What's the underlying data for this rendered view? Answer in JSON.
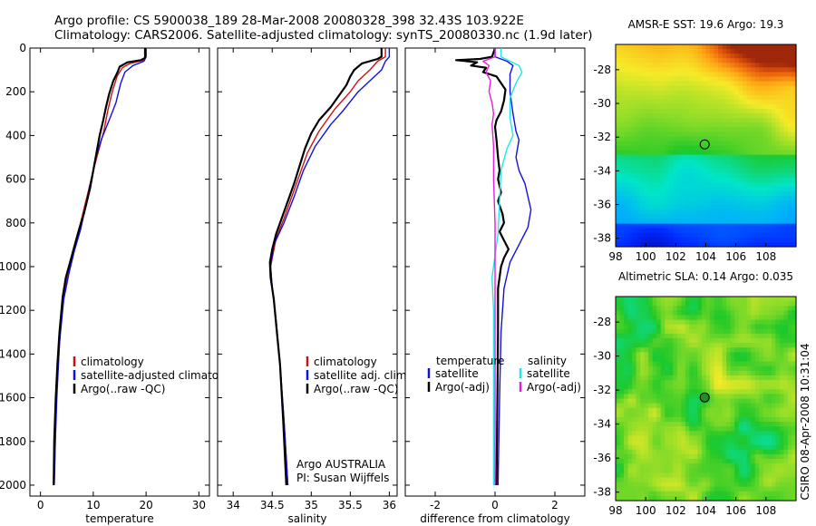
{
  "header": {
    "line1": "Argo profile: CS 5900038_189 28-Mar-2008 20080328_398 32.43S 103.922E",
    "line2": "Climatology: CARS2006. Satellite-adjusted climatology: synTS_20080330.nc (1.9d later)"
  },
  "credit": "CSIRO 08-Apr-2008 10:31:04",
  "colors": {
    "climatology": "#d01010",
    "satellite": "#1010e0",
    "argo": "#000000",
    "satellite_salinity": "#22e6e6",
    "argo_adj_salinity": "#e020e0"
  },
  "chart_data": [
    {
      "type": "line",
      "xlabel": "temperature",
      "ylabel": "",
      "xlim": [
        -2,
        32
      ],
      "ylim": [
        2050,
        0
      ],
      "y_inverted": true,
      "xticks": [
        0,
        10,
        20,
        30
      ],
      "yticks": [
        0,
        200,
        400,
        600,
        800,
        1000,
        1200,
        1400,
        1600,
        1800,
        2000
      ],
      "legend": {
        "placement": "lower-right",
        "entries": [
          "climatology",
          "satellite-adjusted climatology",
          "Argo(..raw -QC)"
        ]
      },
      "series": [
        {
          "name": "climatology",
          "color": "#d01010",
          "points": [
            [
              20,
              0
            ],
            [
              20,
              40
            ],
            [
              19.6,
              55
            ],
            [
              17,
              70
            ],
            [
              15.5,
              90
            ],
            [
              14.5,
              130
            ],
            [
              13.6,
              200
            ],
            [
              12.8,
              280
            ],
            [
              12,
              380
            ],
            [
              11,
              470
            ],
            [
              10,
              560
            ],
            [
              9,
              660
            ],
            [
              8,
              760
            ],
            [
              7,
              860
            ],
            [
              6,
              960
            ],
            [
              5,
              1060
            ],
            [
              4,
              1200
            ],
            [
              3.5,
              1400
            ],
            [
              3,
              1600
            ],
            [
              2.8,
              1800
            ],
            [
              2.6,
              2000
            ]
          ]
        },
        {
          "name": "satellite-adjusted climatology",
          "color": "#1010e0",
          "points": [
            [
              20,
              0
            ],
            [
              20,
              40
            ],
            [
              19.6,
              60
            ],
            [
              17.5,
              80
            ],
            [
              16,
              110
            ],
            [
              15.2,
              160
            ],
            [
              14.3,
              250
            ],
            [
              13,
              330
            ],
            [
              11.5,
              420
            ],
            [
              10.5,
              500
            ],
            [
              9.6,
              600
            ],
            [
              8.6,
              720
            ],
            [
              7.6,
              830
            ],
            [
              6.4,
              930
            ],
            [
              5.4,
              1030
            ],
            [
              4.4,
              1150
            ],
            [
              3.6,
              1350
            ],
            [
              3.1,
              1600
            ],
            [
              2.8,
              1800
            ],
            [
              2.6,
              2000
            ]
          ]
        },
        {
          "name": "Argo(..raw -QC)",
          "color": "#000000",
          "points": [
            [
              19.8,
              0
            ],
            [
              19.8,
              45
            ],
            [
              19,
              55
            ],
            [
              16.5,
              65
            ],
            [
              15,
              85
            ],
            [
              14.6,
              110
            ],
            [
              13.8,
              150
            ],
            [
              13,
              210
            ],
            [
              12.4,
              270
            ],
            [
              11.9,
              330
            ],
            [
              11.2,
              400
            ],
            [
              10.6,
              480
            ],
            [
              10,
              560
            ],
            [
              9.4,
              640
            ],
            [
              8.8,
              700
            ],
            [
              8.2,
              760
            ],
            [
              7.3,
              830
            ],
            [
              6.5,
              900
            ],
            [
              5.6,
              980
            ],
            [
              4.8,
              1050
            ],
            [
              4.2,
              1140
            ],
            [
              3.6,
              1300
            ],
            [
              3.2,
              1450
            ],
            [
              2.9,
              1600
            ],
            [
              2.6,
              1800
            ],
            [
              2.5,
              2000
            ]
          ]
        }
      ]
    },
    {
      "type": "line",
      "xlabel": "salinity",
      "ylabel": "",
      "xlim": [
        33.8,
        36.1
      ],
      "ylim": [
        2050,
        0
      ],
      "y_inverted": true,
      "xticks": [
        34,
        34.5,
        35,
        35.5,
        36
      ],
      "legend": {
        "placement": "lower-right",
        "entries": [
          "climatology",
          "satellite adj. clim.",
          "Argo(..raw -QC)"
        ]
      },
      "annotation": [
        "Argo AUSTRALIA",
        "PI: Susan Wijffels"
      ],
      "series": [
        {
          "name": "climatology",
          "color": "#d01010",
          "points": [
            [
              35.95,
              0
            ],
            [
              35.95,
              40
            ],
            [
              35.85,
              60
            ],
            [
              35.75,
              100
            ],
            [
              35.6,
              150
            ],
            [
              35.5,
              200
            ],
            [
              35.3,
              280
            ],
            [
              35.1,
              380
            ],
            [
              34.95,
              480
            ],
            [
              34.85,
              580
            ],
            [
              34.75,
              680
            ],
            [
              34.65,
              780
            ],
            [
              34.55,
              870
            ],
            [
              34.5,
              960
            ],
            [
              34.48,
              1000
            ],
            [
              34.5,
              1100
            ],
            [
              34.55,
              1250
            ],
            [
              34.6,
              1450
            ],
            [
              34.65,
              1700
            ],
            [
              34.7,
              2000
            ]
          ]
        },
        {
          "name": "satellite adj. clim.",
          "color": "#1010e0",
          "points": [
            [
              36,
              0
            ],
            [
              36,
              40
            ],
            [
              35.95,
              60
            ],
            [
              35.9,
              100
            ],
            [
              35.75,
              150
            ],
            [
              35.6,
              200
            ],
            [
              35.4,
              290
            ],
            [
              35.25,
              350
            ],
            [
              35.05,
              450
            ],
            [
              34.9,
              560
            ],
            [
              34.78,
              680
            ],
            [
              34.65,
              800
            ],
            [
              34.52,
              900
            ],
            [
              34.48,
              1000
            ],
            [
              34.5,
              1100
            ],
            [
              34.55,
              1250
            ],
            [
              34.6,
              1450
            ],
            [
              34.65,
              1700
            ],
            [
              34.7,
              2000
            ]
          ]
        },
        {
          "name": "Argo(..raw -QC)",
          "color": "#000000",
          "points": [
            [
              35.9,
              0
            ],
            [
              35.9,
              40
            ],
            [
              35.85,
              50
            ],
            [
              35.65,
              70
            ],
            [
              35.55,
              100
            ],
            [
              35.5,
              130
            ],
            [
              35.45,
              170
            ],
            [
              35.35,
              220
            ],
            [
              35.25,
              270
            ],
            [
              35.1,
              330
            ],
            [
              35,
              390
            ],
            [
              34.92,
              460
            ],
            [
              34.85,
              540
            ],
            [
              34.78,
              620
            ],
            [
              34.7,
              700
            ],
            [
              34.62,
              780
            ],
            [
              34.55,
              850
            ],
            [
              34.5,
              920
            ],
            [
              34.47,
              980
            ],
            [
              34.48,
              1050
            ],
            [
              34.52,
              1150
            ],
            [
              34.56,
              1300
            ],
            [
              34.6,
              1450
            ],
            [
              34.64,
              1700
            ],
            [
              34.68,
              2000
            ]
          ]
        }
      ]
    },
    {
      "type": "line",
      "xlabel": "difference from climatology",
      "ylabel": "",
      "xlim": [
        -3,
        3
      ],
      "ylim": [
        2050,
        0
      ],
      "y_inverted": true,
      "xticks": [
        -2,
        0,
        2
      ],
      "legend": {
        "placement": "lower-right",
        "groups": [
          {
            "title": "temperature",
            "entries": [
              "satellite",
              "Argo(-adj)"
            ]
          },
          {
            "title": "salinity",
            "entries": [
              "satellite",
              "Argo(-adj)"
            ]
          }
        ]
      },
      "series": [
        {
          "name": "temperature satellite",
          "color": "#1010e0",
          "points": [
            [
              0,
              0
            ],
            [
              0,
              40
            ],
            [
              0.4,
              60
            ],
            [
              0.6,
              80
            ],
            [
              0.5,
              120
            ],
            [
              0.5,
              200
            ],
            [
              0.6,
              300
            ],
            [
              0.7,
              380
            ],
            [
              0.8,
              420
            ],
            [
              0.7,
              500
            ],
            [
              0.8,
              560
            ],
            [
              1,
              620
            ],
            [
              1.1,
              680
            ],
            [
              1.2,
              740
            ],
            [
              1.1,
              820
            ],
            [
              0.8,
              900
            ],
            [
              0.5,
              980
            ],
            [
              0.3,
              1100
            ],
            [
              0.2,
              1300
            ],
            [
              0.15,
              1600
            ],
            [
              0.1,
              2000
            ]
          ]
        },
        {
          "name": "temperature Argo(-adj)",
          "color": "#000000",
          "points": [
            [
              0,
              0
            ],
            [
              -0.1,
              40
            ],
            [
              -0.5,
              50
            ],
            [
              -1.3,
              55
            ],
            [
              -0.6,
              65
            ],
            [
              -0.8,
              80
            ],
            [
              -0.3,
              90
            ],
            [
              -0.4,
              110
            ],
            [
              0.05,
              130
            ],
            [
              0.2,
              160
            ],
            [
              0.35,
              190
            ],
            [
              0.3,
              240
            ],
            [
              0.2,
              290
            ],
            [
              0.05,
              330
            ],
            [
              0,
              360
            ],
            [
              0.05,
              420
            ],
            [
              0.1,
              500
            ],
            [
              0.15,
              560
            ],
            [
              0.1,
              600
            ],
            [
              0.2,
              660
            ],
            [
              0.1,
              700
            ],
            [
              0.25,
              760
            ],
            [
              0.3,
              800
            ],
            [
              0.15,
              840
            ],
            [
              0.3,
              880
            ],
            [
              0.45,
              920
            ],
            [
              0.3,
              960
            ],
            [
              0.2,
              1000
            ],
            [
              0.1,
              1100
            ],
            [
              0.1,
              1300
            ],
            [
              0.08,
              1600
            ],
            [
              0.05,
              2000
            ]
          ]
        },
        {
          "name": "salinity satellite",
          "color": "#22e6e6",
          "points": [
            [
              0.2,
              0
            ],
            [
              0.2,
              40
            ],
            [
              0.5,
              60
            ],
            [
              0.8,
              80
            ],
            [
              0.9,
              110
            ],
            [
              0.7,
              160
            ],
            [
              0.5,
              230
            ],
            [
              0.5,
              320
            ],
            [
              0.6,
              400
            ],
            [
              0.4,
              460
            ],
            [
              0.2,
              560
            ],
            [
              0.15,
              700
            ],
            [
              0.1,
              850
            ],
            [
              0,
              950
            ],
            [
              -0.1,
              1050
            ],
            [
              -0.05,
              1200
            ],
            [
              -0.05,
              1400
            ],
            [
              -0.05,
              1600
            ],
            [
              -0.05,
              1800
            ],
            [
              -0.05,
              2000
            ]
          ]
        },
        {
          "name": "salinity Argo(-adj)",
          "color": "#e020e0",
          "points": [
            [
              0,
              0
            ],
            [
              0,
              40
            ],
            [
              -0.4,
              60
            ],
            [
              -0.2,
              80
            ],
            [
              -0.3,
              110
            ],
            [
              -0.15,
              150
            ],
            [
              -0.2,
              200
            ],
            [
              -0.1,
              250
            ],
            [
              -0.05,
              300
            ],
            [
              -0.1,
              350
            ],
            [
              -0.05,
              450
            ],
            [
              -0.05,
              600
            ],
            [
              0,
              800
            ],
            [
              0,
              1000
            ],
            [
              0,
              1200
            ],
            [
              0,
              1500
            ],
            [
              0,
              2000
            ]
          ]
        }
      ]
    },
    {
      "type": "heatmap",
      "title": "AMSR-E SST: 19.6 Argo: 19.3",
      "xlim": [
        98,
        110
      ],
      "ylim": [
        -38.5,
        -26.5
      ],
      "xticks": [
        98,
        100,
        102,
        104,
        106,
        108
      ],
      "yticks": [
        -28,
        -30,
        -32,
        -34,
        -36,
        -38
      ],
      "marker": {
        "lon": 103.922,
        "lat": -32.43
      }
    },
    {
      "type": "heatmap",
      "title": "Altimetric SLA: 0.14 Argo: 0.035",
      "xlim": [
        98,
        110
      ],
      "ylim": [
        -38.5,
        -26.5
      ],
      "xticks": [
        98,
        100,
        102,
        104,
        106,
        108
      ],
      "yticks": [
        -28,
        -30,
        -32,
        -34,
        -36,
        -38
      ],
      "marker": {
        "lon": 103.922,
        "lat": -32.43
      }
    }
  ]
}
